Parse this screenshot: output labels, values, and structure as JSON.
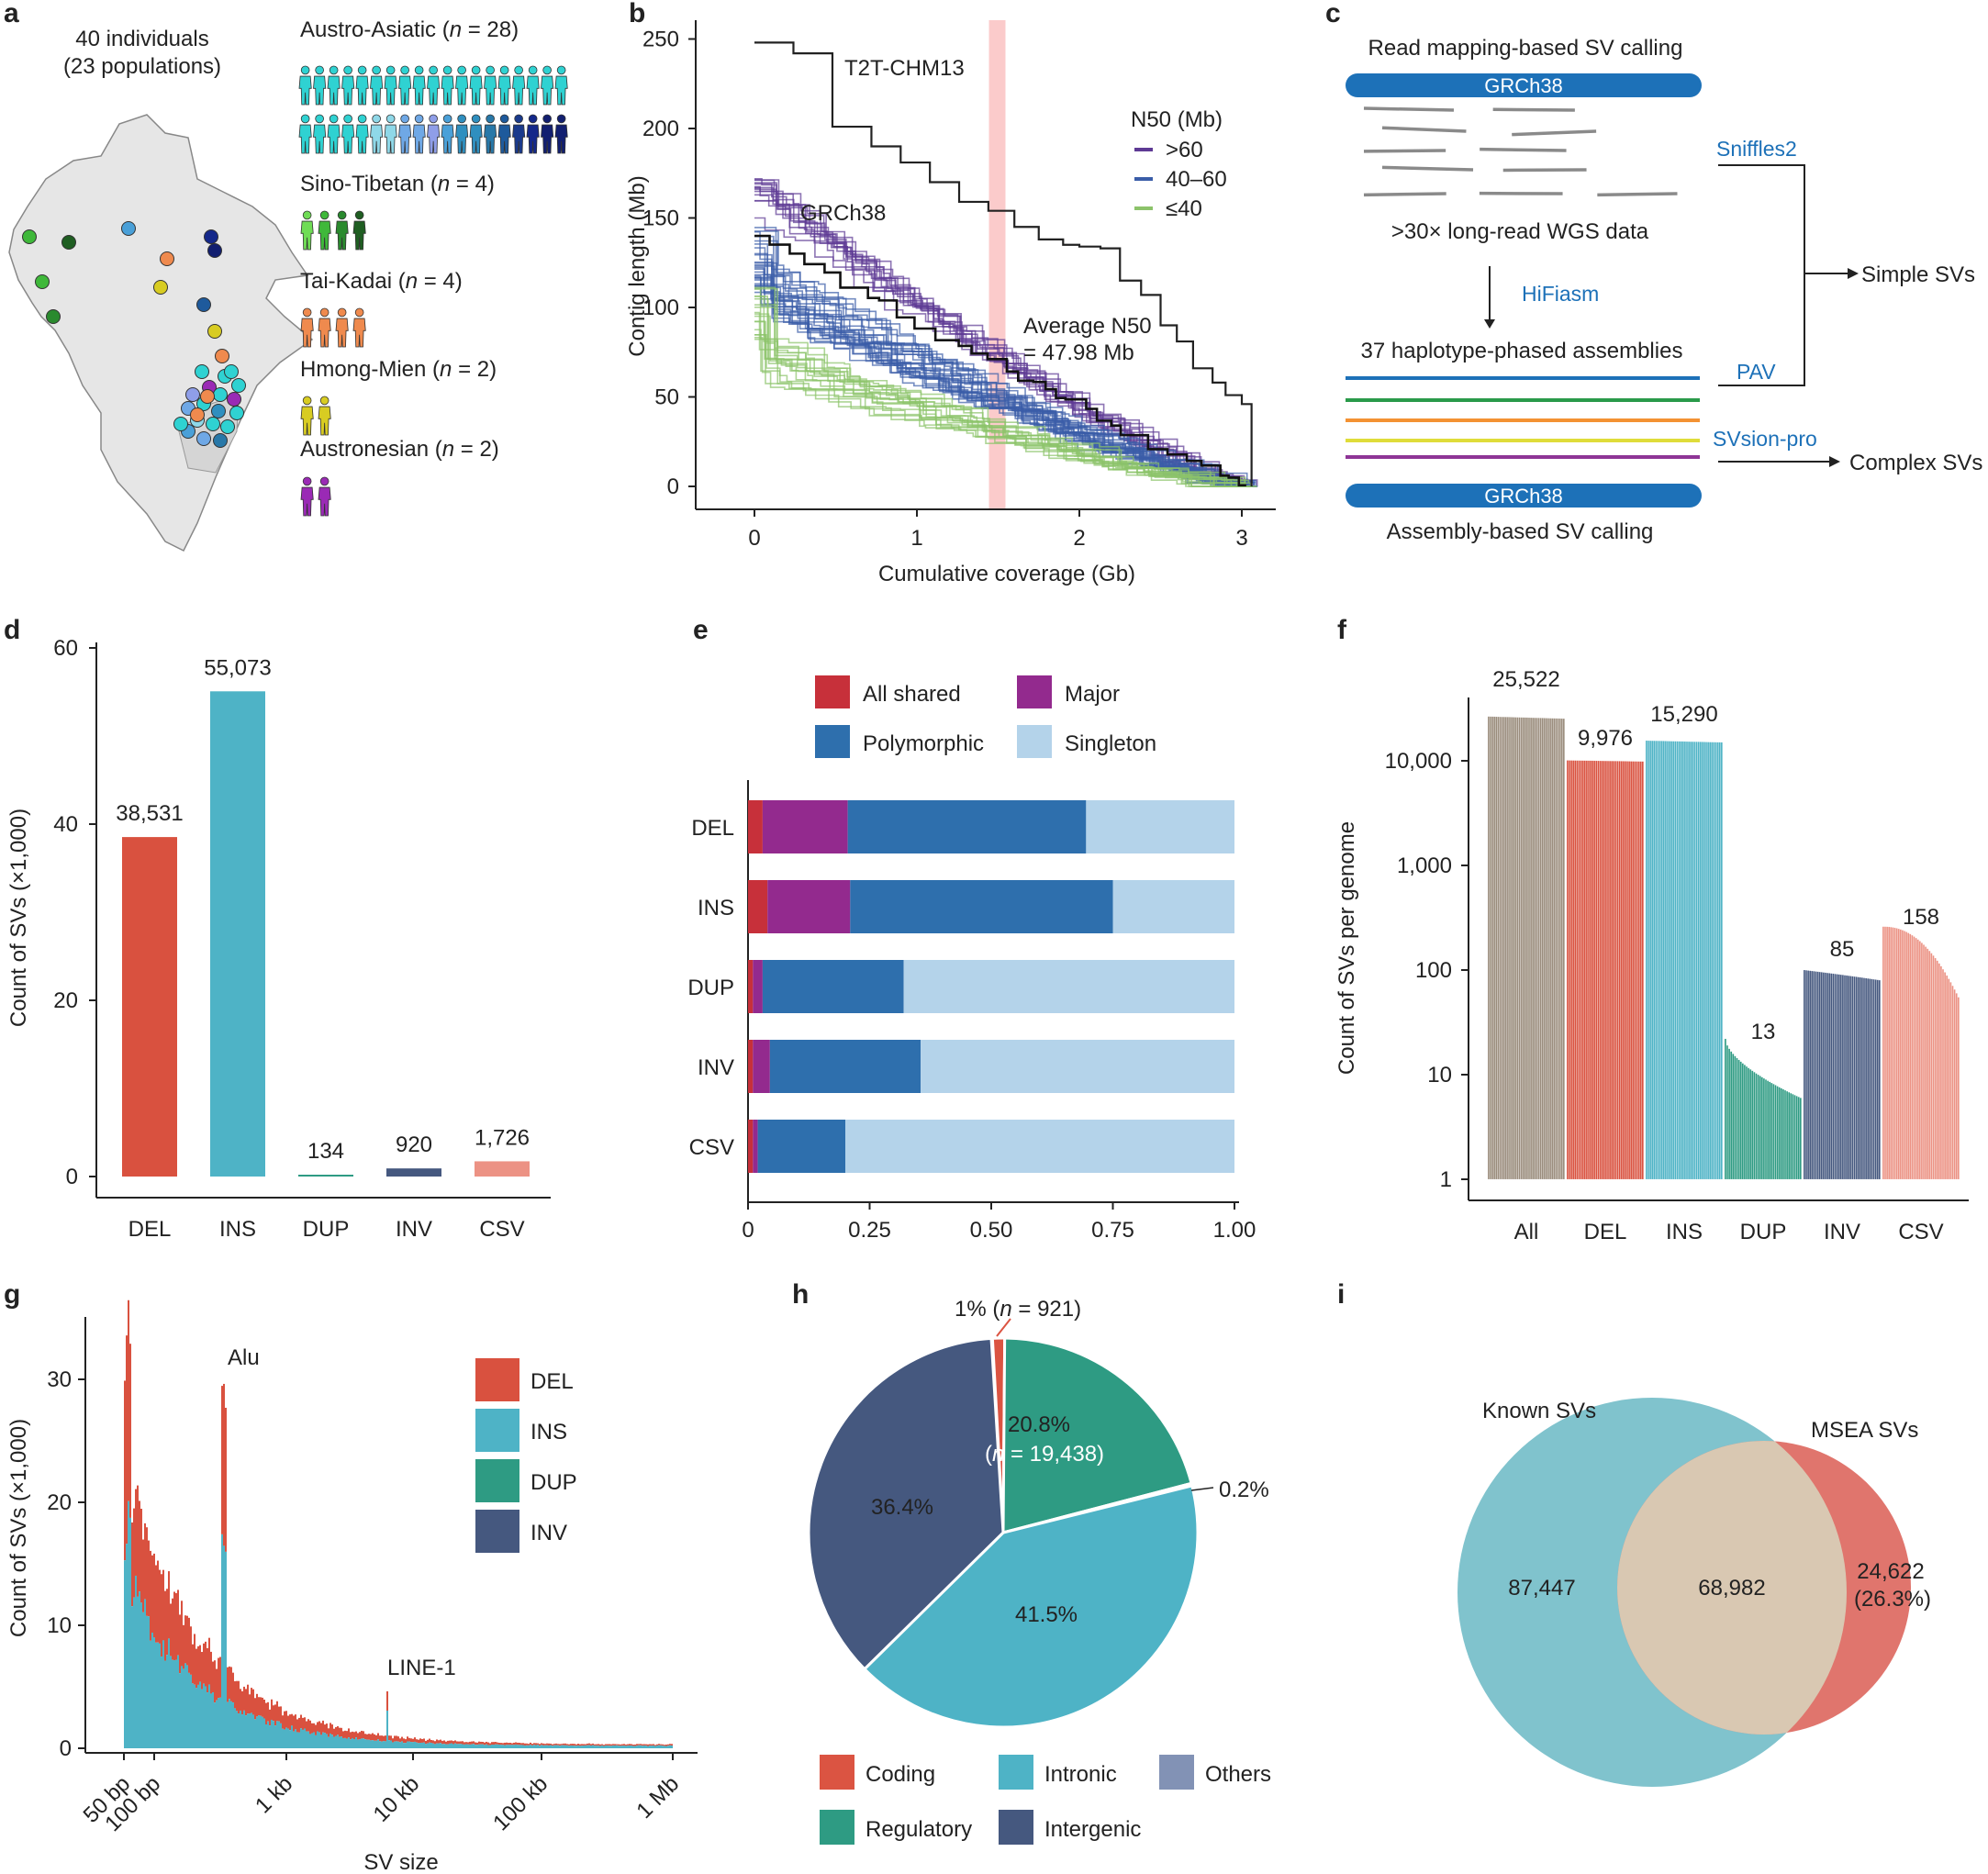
{
  "colors": {
    "del": "#d9513f",
    "ins": "#4eb3c6",
    "dup": "#2e9b83",
    "inv": "#45587f",
    "csv": "#ec9284",
    "all": "#9a8c7c",
    "shared": "#c7303a",
    "major": "#932a8e",
    "poly": "#2e6fad",
    "single": "#b4d3ea",
    "coding": "#db5442",
    "intronic": "#4eb3c6",
    "others": "#8292b5",
    "regulatory": "#2e9b83",
    "intergenic": "#45587f",
    "known": "#80c3cd",
    "msea": "#e0756d",
    "overlap": "#d9c8b2",
    "t2t": "#222222",
    "n50_hi": "#5e3a94",
    "n50_mid": "#3a5da8",
    "n50_lo": "#8cc36a",
    "avg_band": "#f8a0a0"
  },
  "panels": {
    "a": "a",
    "b": "b",
    "c": "c",
    "d": "d",
    "e": "e",
    "f": "f",
    "g": "g",
    "h": "h",
    "i": "i"
  },
  "panel_a": {
    "title_line1": "40 individuals",
    "title_line2": "(23 populations)",
    "groups": [
      {
        "name": "Austro-Asiatic",
        "n_text": "n",
        "count": "= 28)",
        "colors": [
          "#2fd2d2",
          "#2fd2d2",
          "#2fd2d2",
          "#2fd2d2",
          "#2fd2d2",
          "#2fd2d2",
          "#2fd2d2",
          "#2fd2d2",
          "#2fd2d2",
          "#2fd2d2",
          "#2fd2d2",
          "#2fd2d2",
          "#2fd2d2",
          "#2fd2d2",
          "#2fd2d2",
          "#2fd2d2",
          "#2fd2d2",
          "#2fd2d2",
          "#2fd2d2",
          "#2fd2d2",
          "#2fd2d2",
          "#2fd2d2",
          "#2fd2d2",
          "#2fd2d2",
          "#2fd2d2",
          "#2fd2d2",
          "#2fd2d2",
          "#2fd2d2",
          "#2fd2d2",
          "#2fd2d2",
          "#2fd2d2",
          "#2fd2d2",
          "#2fd2d2",
          "#2fd2d2",
          "#2fd2d2",
          "#2fd2d2",
          "#2fd2d2",
          "#2fd2d2",
          "#2fd2d2",
          "#2fd2d2",
          "#2fd2d2",
          "#2fd2d2",
          "#2fd2d2",
          "#2fd2d2",
          "#2fd2d2",
          "#2fd2d2",
          "#2fd2d2",
          "#2fd2d2",
          "#2fd2d2",
          "#2fd2d2",
          "#2fd2d2",
          "#2fd2d2",
          "#2fd2d2",
          "#2fd2d2",
          "#2fd2d2",
          "#2fd2d2",
          "#2fd2d2",
          "#2fd2d2",
          "#2fd2d2",
          "#2fd2d2",
          "#2fd2d2",
          "#2fd2d2",
          "#2fd2d2",
          "#2fd2d2",
          "#2fd2d2",
          "#2fd2d2",
          "#2fd2d2",
          "#2fd2d2",
          "#2fd2d2",
          "#2fd2d2",
          "#2fd2d2",
          "#2fd2d2"
        ],
        "row2": [
          "#2fd2d2",
          "#2fd2d2",
          "#2fd2d2",
          "#2fd2d2",
          "#2fd2d2",
          "#8fd8e8",
          "#8fd8e8",
          "#6fa8e6",
          "#6fa8e6",
          "#8f9ee8",
          "#4aa0d8",
          "#2f8fbf",
          "#2f8fbf",
          "#2878a8",
          "#1e5a9c",
          "#1a3a8c",
          "#14288a",
          "#121f70",
          "#121f70"
        ]
      },
      {
        "name": "Sino-Tibetan",
        "n_text": "n",
        "count": "= 4)",
        "colors": [
          "#6fdc55",
          "#3fb83a",
          "#2a8a2e",
          "#1f5e22"
        ]
      },
      {
        "name": "Tai-Kadai",
        "n_text": "n",
        "count": "= 4)",
        "colors": [
          "#ef8a4e",
          "#ef8a4e",
          "#ef8a4e",
          "#ef8a4e"
        ]
      },
      {
        "name": "Hmong-Mien",
        "n_text": "n",
        "count": "= 2)",
        "colors": [
          "#d8cc22",
          "#d8cc22"
        ]
      },
      {
        "name": "Austronesian",
        "n_text": "n",
        "count": "= 2)",
        "colors": [
          "#9a2ab5",
          "#9a2ab5"
        ]
      }
    ],
    "open_paren": "("
  },
  "panel_b": {
    "ylabel": "Contig length (Mb)",
    "xlabel": "Cumulative coverage (Gb)",
    "yticks": [
      "0",
      "50",
      "100",
      "150",
      "200",
      "250"
    ],
    "xticks": [
      "0",
      "1",
      "2",
      "3"
    ],
    "t2t_label": "T2T-CHM13",
    "grch38_label": "GRCh38",
    "legend_title": "N50 (Mb)",
    "legend": [
      ">60",
      "40–60",
      "≤40"
    ],
    "avg_line1": "Average N50",
    "avg_line2": "= 47.98 Mb",
    "avg_n50_gb": 1.5,
    "t2t_steps": [
      [
        0,
        248
      ],
      [
        0.24,
        248
      ],
      [
        0.24,
        242
      ],
      [
        0.48,
        242
      ],
      [
        0.48,
        201
      ],
      [
        0.72,
        201
      ],
      [
        0.72,
        190
      ],
      [
        0.9,
        190
      ],
      [
        0.9,
        181
      ],
      [
        1.08,
        181
      ],
      [
        1.08,
        170
      ],
      [
        1.26,
        170
      ],
      [
        1.26,
        159
      ],
      [
        1.44,
        159
      ],
      [
        1.44,
        154
      ],
      [
        1.6,
        154
      ],
      [
        1.6,
        145
      ],
      [
        1.75,
        145
      ],
      [
        1.75,
        138
      ],
      [
        1.9,
        138
      ],
      [
        1.9,
        135
      ],
      [
        2.0,
        135
      ],
      [
        2.0,
        134
      ],
      [
        2.13,
        134
      ],
      [
        2.13,
        133
      ],
      [
        2.25,
        133
      ],
      [
        2.25,
        115
      ],
      [
        2.38,
        115
      ],
      [
        2.38,
        107
      ],
      [
        2.5,
        107
      ],
      [
        2.5,
        90
      ],
      [
        2.6,
        90
      ],
      [
        2.6,
        81
      ],
      [
        2.7,
        81
      ],
      [
        2.7,
        66
      ],
      [
        2.82,
        66
      ],
      [
        2.82,
        58
      ],
      [
        2.9,
        58
      ],
      [
        2.9,
        51
      ],
      [
        3.0,
        51
      ],
      [
        3.0,
        46
      ],
      [
        3.06,
        46
      ],
      [
        3.06,
        0
      ]
    ]
  },
  "panel_c": {
    "title_top": "Read mapping-based SV calling",
    "ref_top": "GRCh38",
    "reads_label": ">30× long-read WGS data",
    "hifiasm": "HiFiasm",
    "assemblies_label": "37 haplotype-phased assemblies",
    "ref_bottom": "GRCh38",
    "title_bottom": "Assembly-based SV calling",
    "sniffles": "Sniffles2",
    "pav": "PAV",
    "svision": "SVsion-pro",
    "simple": "Simple SVs",
    "complex": "Complex SVs"
  },
  "chart_data": [
    {
      "id": "d",
      "type": "bar",
      "categories": [
        "DEL",
        "INS",
        "DUP",
        "INV",
        "CSV"
      ],
      "values": [
        38.531,
        55.073,
        0.134,
        0.92,
        1.726
      ],
      "labels": [
        "38,531",
        "55,073",
        "134",
        "920",
        "1,726"
      ],
      "ylabel": "Count of SVs (×1,000)",
      "ylim": [
        0,
        60
      ],
      "yticks": [
        "0",
        "20",
        "40",
        "60"
      ]
    },
    {
      "id": "e",
      "type": "bar",
      "orientation": "horizontal",
      "stacked": true,
      "categories": [
        "DEL",
        "INS",
        "DUP",
        "INV",
        "CSV"
      ],
      "series": [
        {
          "name": "All shared",
          "values": [
            0.03,
            0.04,
            0.01,
            0.01,
            0.01
          ]
        },
        {
          "name": "Major",
          "values": [
            0.175,
            0.17,
            0.02,
            0.035,
            0.01
          ]
        },
        {
          "name": "Polymorphic",
          "values": [
            0.49,
            0.54,
            0.29,
            0.31,
            0.18
          ]
        },
        {
          "name": "Singleton",
          "values": [
            0.305,
            0.25,
            0.68,
            0.645,
            0.8
          ]
        }
      ],
      "xticks": [
        "0",
        "0.25",
        "0.50",
        "0.75",
        "1.00"
      ],
      "xlim": [
        0,
        1
      ]
    },
    {
      "id": "f",
      "type": "bar",
      "yscale": "log",
      "categories": [
        "All",
        "DEL",
        "INS",
        "DUP",
        "INV",
        "CSV"
      ],
      "group_range_max": [
        26500,
        10100,
        15600,
        22,
        100,
        260
      ],
      "group_range_min": [
        25300,
        9850,
        15000,
        6,
        80,
        55
      ],
      "labels": [
        "25,522",
        "9,976",
        "15,290",
        "13",
        "85",
        "158"
      ],
      "ylabel": "Count of SVs per genome",
      "yticks": [
        "1",
        "10",
        "100",
        "1,000",
        "10,000"
      ]
    },
    {
      "id": "g",
      "type": "area",
      "title": "",
      "xlabel": "SV size",
      "ylabel": "Count of SVs (×1,000)",
      "xticks": [
        "50 bp",
        "100 bp",
        "1 kb",
        "10 kb",
        "100 kb",
        "1 Mb"
      ],
      "yticks": [
        "0",
        "10",
        "20",
        "30"
      ],
      "ylim": [
        0,
        35
      ],
      "legend": [
        "DEL",
        "INS",
        "DUP",
        "INV"
      ],
      "annotations": [
        "Alu",
        "LINE-1"
      ]
    },
    {
      "id": "h",
      "type": "pie",
      "slices": [
        {
          "name": "Coding",
          "value": 1.0
        },
        {
          "name": "Regulatory",
          "value": 20.8
        },
        {
          "name": "Others",
          "value": 0.2
        },
        {
          "name": "Intronic",
          "value": 41.5
        },
        {
          "name": "Intergenic",
          "value": 36.4
        }
      ],
      "labels": {
        "coding": "1% (",
        "coding_n": "n",
        "coding_rest": "= 921)",
        "reg1": "20.8%",
        "reg2_open": "(",
        "reg2_n": "n",
        "reg2_rest": "= 19,438)",
        "others": "0.2%",
        "intronic": "41.5%",
        "intergenic": "36.4%"
      },
      "legend": [
        "Coding",
        "Intronic",
        "Others",
        "Regulatory",
        "Intergenic"
      ]
    },
    {
      "id": "i",
      "type": "venn",
      "sets": [
        "Known SVs",
        "MSEA SVs"
      ],
      "only_known": "87,447",
      "overlap": "68,982",
      "only_msea": "24,622",
      "only_msea_pct": "(26.3%)"
    }
  ]
}
